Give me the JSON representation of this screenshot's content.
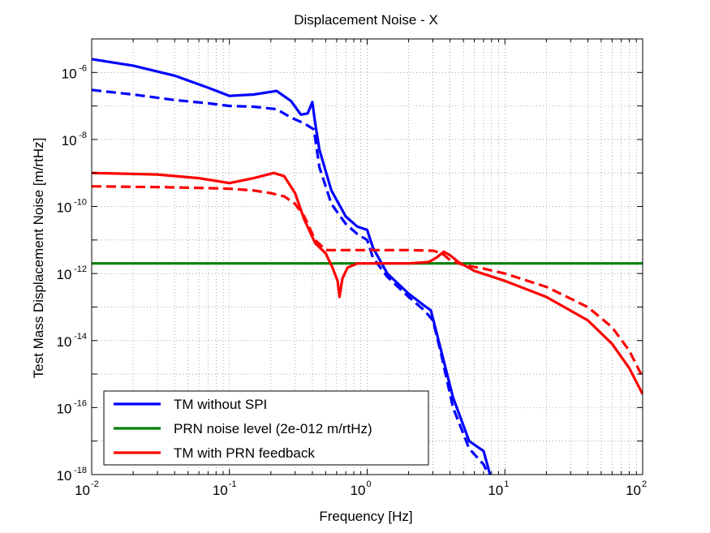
{
  "chart_data": {
    "type": "line",
    "title": "Displacement Noise - X",
    "xlabel": "Frequency [Hz]",
    "ylabel": "Test Mass Displacement Noise [m/rtHz]",
    "xscale": "log",
    "yscale": "log",
    "xlim": [
      0.01,
      100
    ],
    "ylim": [
      1e-18,
      1e-05
    ],
    "grid": true,
    "legend_position": "bottom-left",
    "x_ticks": [
      {
        "base": "10",
        "exp": "-2",
        "value": 0.01
      },
      {
        "base": "10",
        "exp": "-1",
        "value": 0.1
      },
      {
        "base": "10",
        "exp": "0",
        "value": 1
      },
      {
        "base": "10",
        "exp": "1",
        "value": 10
      },
      {
        "base": "10",
        "exp": "2",
        "value": 100
      }
    ],
    "y_ticks": [
      {
        "base": "10",
        "exp": "-6",
        "value": 1e-06
      },
      {
        "base": "10",
        "exp": "-8",
        "value": 1e-08
      },
      {
        "base": "10",
        "exp": "-10",
        "value": 1e-10
      },
      {
        "base": "10",
        "exp": "-12",
        "value": 1e-12
      },
      {
        "base": "10",
        "exp": "-14",
        "value": 1e-14
      },
      {
        "base": "10",
        "exp": "-16",
        "value": 1e-16
      },
      {
        "base": "10",
        "exp": "-18",
        "value": 1e-18
      }
    ],
    "legend": [
      {
        "label": "TM without SPI",
        "color": "#0000ff"
      },
      {
        "label": "PRN noise level (2e-012 m/rtHz)",
        "color": "#007f00"
      },
      {
        "label": "TM with PRN feedback",
        "color": "#ff0000"
      }
    ],
    "series": [
      {
        "name": "TM without SPI",
        "color": "#0000ff",
        "dash": false,
        "x": [
          0.01,
          0.02,
          0.04,
          0.07,
          0.1,
          0.15,
          0.22,
          0.28,
          0.33,
          0.37,
          0.4,
          0.42,
          0.45,
          0.55,
          0.7,
          0.85,
          1.0,
          1.1,
          1.4,
          2.0,
          2.6,
          2.9,
          3.3,
          4.2,
          5.5,
          7.0,
          7.8
        ],
        "y": [
          2.5e-06,
          1.6e-06,
          8e-07,
          3.5e-07,
          2e-07,
          2.2e-07,
          2.8e-07,
          1.4e-07,
          5.5e-08,
          6e-08,
          1.3e-07,
          3e-08,
          5e-09,
          3e-10,
          5e-11,
          2.5e-11,
          2e-11,
          6e-12,
          1e-12,
          2.5e-13,
          1.1e-13,
          8e-14,
          1e-14,
          2e-16,
          1e-17,
          5e-18,
          1e-18
        ]
      },
      {
        "name": "",
        "color": "#0000ff",
        "dash": true,
        "x": [
          0.01,
          0.02,
          0.04,
          0.07,
          0.1,
          0.15,
          0.22,
          0.28,
          0.35,
          0.41,
          0.45,
          0.55,
          0.7,
          0.85,
          1.0,
          1.1,
          1.4,
          2.0,
          2.6,
          3.0,
          3.4,
          4.2,
          5.5,
          7.0,
          7.6
        ],
        "y": [
          3e-07,
          2.2e-07,
          1.5e-07,
          1.2e-07,
          1e-07,
          9.5e-08,
          8e-08,
          4.5e-08,
          3e-08,
          2e-08,
          1.5e-09,
          1.2e-10,
          3e-11,
          1.5e-11,
          1e-11,
          3e-12,
          8e-13,
          2e-13,
          8e-14,
          4e-14,
          5e-15,
          1e-16,
          6e-18,
          2e-18,
          1e-18
        ]
      },
      {
        "name": "PRN noise level (2e-012 m/rtHz)",
        "color": "#007f00",
        "dash": false,
        "x": [
          0.01,
          100
        ],
        "y": [
          2e-12,
          2e-12
        ]
      },
      {
        "name": "TM with PRN feedback",
        "color": "#ff0000",
        "dash": false,
        "x": [
          0.01,
          0.03,
          0.06,
          0.1,
          0.15,
          0.21,
          0.25,
          0.3,
          0.35,
          0.42,
          0.5,
          0.56,
          0.61,
          0.63,
          0.66,
          0.72,
          0.85,
          1.0,
          2.0,
          2.8,
          3.2,
          3.6,
          4.0,
          4.6,
          6.0,
          10,
          20,
          40,
          60,
          80,
          100
        ],
        "y": [
          1e-09,
          9e-10,
          7e-10,
          5e-10,
          7e-10,
          1e-09,
          8e-10,
          2.5e-10,
          4e-11,
          8e-12,
          4e-12,
          1.5e-12,
          6e-13,
          2e-13,
          7e-13,
          1.5e-12,
          2e-12,
          2e-12,
          2e-12,
          2.2e-12,
          3e-12,
          4.5e-12,
          3.5e-12,
          2.2e-12,
          1.2e-12,
          6e-13,
          2e-13,
          4e-14,
          8e-15,
          1.5e-15,
          2.5e-16
        ]
      },
      {
        "name": "",
        "color": "#ff0000",
        "dash": true,
        "x": [
          0.01,
          0.03,
          0.06,
          0.1,
          0.15,
          0.2,
          0.25,
          0.3,
          0.35,
          0.42,
          0.5,
          0.7,
          1.0,
          2.0,
          3.0,
          3.5,
          4.0,
          5.0,
          7.0,
          10,
          20,
          40,
          60,
          80,
          100
        ],
        "y": [
          4e-10,
          3.8e-10,
          3.6e-10,
          3.4e-10,
          3e-10,
          2.5e-10,
          2e-10,
          1.2e-10,
          5e-11,
          1e-11,
          5e-12,
          5e-12,
          5e-12,
          5e-12,
          4.8e-12,
          4e-12,
          2.5e-12,
          1.8e-12,
          1.4e-12,
          1e-12,
          4e-13,
          1e-13,
          2.5e-14,
          5e-15,
          8e-16
        ]
      }
    ]
  }
}
